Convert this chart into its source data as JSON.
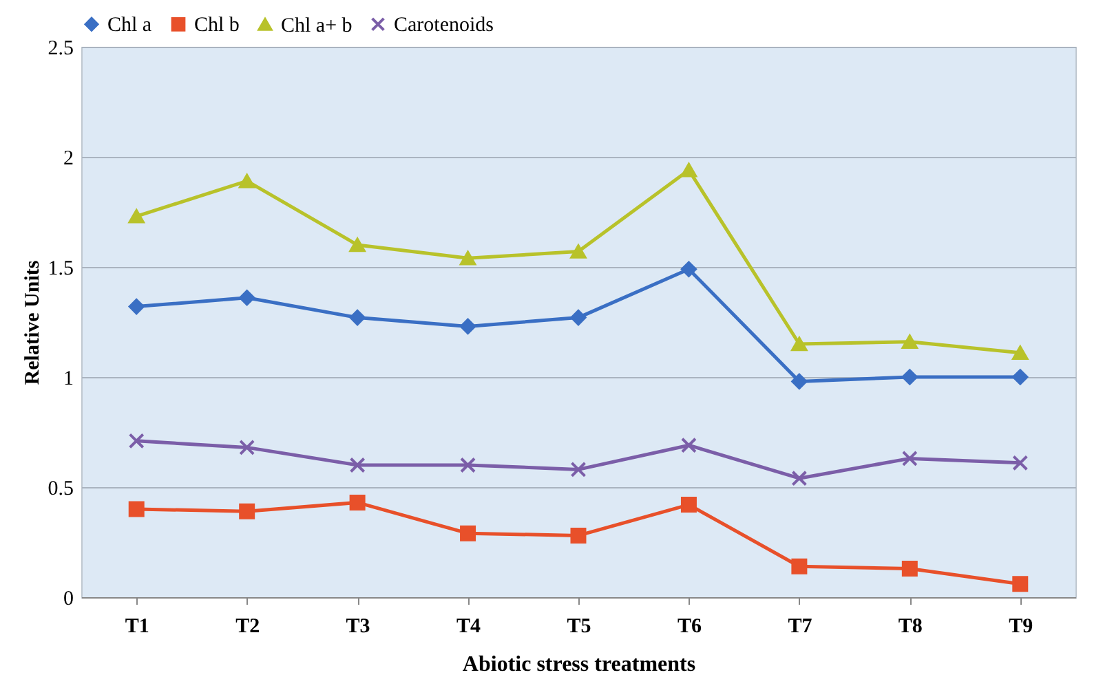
{
  "chart_data": {
    "type": "line",
    "xlabel": "Abiotic stress treatments",
    "ylabel": "Relative Units",
    "categories": [
      "T1",
      "T2",
      "T3",
      "T4",
      "T5",
      "T6",
      "T7",
      "T8",
      "T9"
    ],
    "series": [
      {
        "name": "Chl a",
        "color": "#3a6fc4",
        "marker": "diamond",
        "values": [
          1.32,
          1.36,
          1.27,
          1.23,
          1.27,
          1.49,
          0.98,
          1.0,
          1.0
        ]
      },
      {
        "name": "Chl b",
        "color": "#e8502a",
        "marker": "square",
        "values": [
          0.4,
          0.39,
          0.43,
          0.29,
          0.28,
          0.42,
          0.14,
          0.13,
          0.06
        ]
      },
      {
        "name": "Chl a+ b",
        "color": "#b8c22a",
        "marker": "triangle",
        "values": [
          1.73,
          1.89,
          1.6,
          1.54,
          1.57,
          1.94,
          1.15,
          1.16,
          1.11
        ]
      },
      {
        "name": "Carotenoids",
        "color": "#7b5ea8",
        "marker": "cross",
        "values": [
          0.71,
          0.68,
          0.6,
          0.6,
          0.58,
          0.69,
          0.54,
          0.63,
          0.61
        ]
      }
    ],
    "ylim": [
      0,
      2.5
    ],
    "yticks": [
      0,
      0.5,
      1,
      1.5,
      2,
      2.5
    ],
    "grid": "y",
    "legend": "top",
    "line_style": "solid"
  }
}
